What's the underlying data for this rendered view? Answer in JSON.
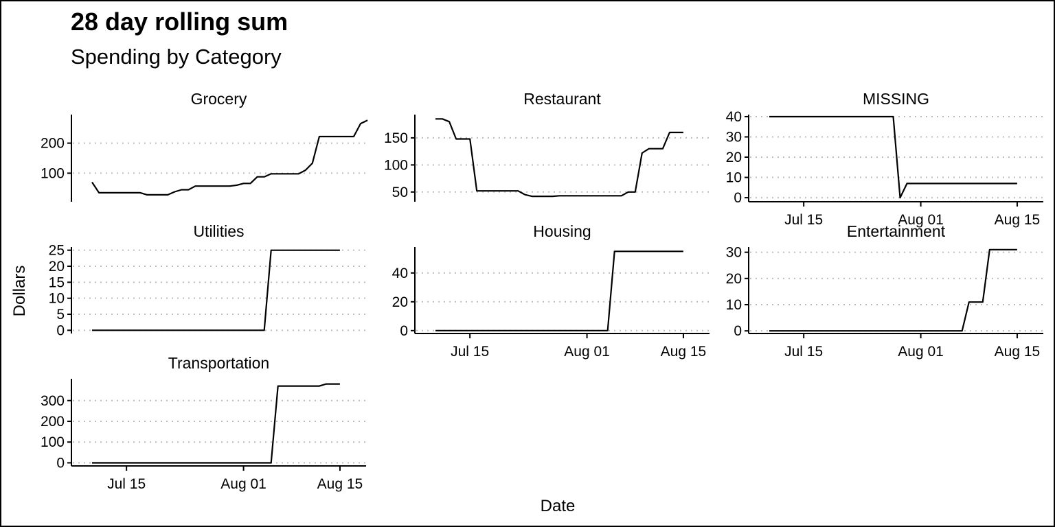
{
  "chart_data": {
    "type": "line",
    "title": "28 day rolling sum",
    "subtitle": "Spending by Category",
    "xlabel": "Date",
    "ylabel": "Dollars",
    "x_ticks": [
      {
        "date": "2023-07-15",
        "label": "Jul 15"
      },
      {
        "date": "2023-08-01",
        "label": "Aug 01"
      },
      {
        "date": "2023-08-15",
        "label": "Aug 15"
      }
    ],
    "xlim": [
      "2023-07-09",
      "2023-08-17"
    ],
    "grid": "horizontal dotted",
    "legend": "none",
    "panels": [
      {
        "name": "Grocery",
        "ylim": [
          5,
          295
        ],
        "y_ticks": [
          100,
          200
        ],
        "x_axis_shown": false,
        "points": [
          [
            "2023-07-10",
            70
          ],
          [
            "2023-07-11",
            35
          ],
          [
            "2023-07-17",
            35
          ],
          [
            "2023-07-18",
            28
          ],
          [
            "2023-07-21",
            28
          ],
          [
            "2023-07-22",
            38
          ],
          [
            "2023-07-23",
            45
          ],
          [
            "2023-07-24",
            45
          ],
          [
            "2023-07-25",
            57
          ],
          [
            "2023-07-30",
            57
          ],
          [
            "2023-07-31",
            60
          ],
          [
            "2023-08-01",
            66
          ],
          [
            "2023-08-02",
            66
          ],
          [
            "2023-08-03",
            88
          ],
          [
            "2023-08-04",
            88
          ],
          [
            "2023-08-05",
            98
          ],
          [
            "2023-08-09",
            98
          ],
          [
            "2023-08-10",
            110
          ],
          [
            "2023-08-11",
            133
          ],
          [
            "2023-08-12",
            222
          ],
          [
            "2023-08-17",
            222
          ],
          [
            "2023-08-18",
            265
          ],
          [
            "2023-08-19",
            276
          ]
        ]
      },
      {
        "name": "Restaurant",
        "ylim": [
          32,
          193
        ],
        "y_ticks": [
          50,
          100,
          150
        ],
        "x_axis_shown": false,
        "points": [
          [
            "2023-07-10",
            185
          ],
          [
            "2023-07-11",
            185
          ],
          [
            "2023-07-12",
            180
          ],
          [
            "2023-07-13",
            148
          ],
          [
            "2023-07-15",
            148
          ],
          [
            "2023-07-16",
            52
          ],
          [
            "2023-07-22",
            52
          ],
          [
            "2023-07-23",
            45
          ],
          [
            "2023-07-24",
            42
          ],
          [
            "2023-07-27",
            42
          ],
          [
            "2023-07-28",
            43
          ],
          [
            "2023-08-06",
            43
          ],
          [
            "2023-08-07",
            50
          ],
          [
            "2023-08-08",
            50
          ],
          [
            "2023-08-09",
            122
          ],
          [
            "2023-08-10",
            130
          ],
          [
            "2023-08-12",
            130
          ],
          [
            "2023-08-13",
            160
          ],
          [
            "2023-08-15",
            160
          ]
        ]
      },
      {
        "name": "MISSING",
        "ylim": [
          -2,
          41
        ],
        "y_ticks": [
          0,
          10,
          20,
          30,
          40
        ],
        "x_axis_shown": true,
        "points": [
          [
            "2023-07-10",
            40
          ],
          [
            "2023-07-28",
            40
          ],
          [
            "2023-07-29",
            0
          ],
          [
            "2023-07-30",
            7
          ],
          [
            "2023-08-15",
            7
          ]
        ]
      },
      {
        "name": "Utilities",
        "ylim": [
          -1,
          26
        ],
        "y_ticks": [
          0,
          5,
          10,
          15,
          20,
          25
        ],
        "x_axis_shown": false,
        "points": [
          [
            "2023-07-10",
            0
          ],
          [
            "2023-08-04",
            0
          ],
          [
            "2023-08-05",
            25
          ],
          [
            "2023-08-15",
            25
          ]
        ]
      },
      {
        "name": "Housing",
        "ylim": [
          -2,
          58
        ],
        "y_ticks": [
          0,
          20,
          40
        ],
        "x_axis_shown": true,
        "points": [
          [
            "2023-07-10",
            0
          ],
          [
            "2023-08-04",
            0
          ],
          [
            "2023-08-05",
            55
          ],
          [
            "2023-08-15",
            55
          ]
        ]
      },
      {
        "name": "Entertainment",
        "ylim": [
          -1,
          32
        ],
        "y_ticks": [
          0,
          10,
          20,
          30
        ],
        "x_axis_shown": true,
        "points": [
          [
            "2023-07-10",
            0
          ],
          [
            "2023-08-07",
            0
          ],
          [
            "2023-08-08",
            11
          ],
          [
            "2023-08-10",
            11
          ],
          [
            "2023-08-11",
            31
          ],
          [
            "2023-08-15",
            31
          ]
        ]
      },
      {
        "name": "Transportation",
        "ylim": [
          -15,
          405
        ],
        "y_ticks": [
          0,
          100,
          200,
          300
        ],
        "x_axis_shown": true,
        "points": [
          [
            "2023-07-10",
            0
          ],
          [
            "2023-08-05",
            0
          ],
          [
            "2023-08-06",
            370
          ],
          [
            "2023-08-12",
            370
          ],
          [
            "2023-08-13",
            380
          ],
          [
            "2023-08-15",
            380
          ]
        ]
      }
    ]
  }
}
